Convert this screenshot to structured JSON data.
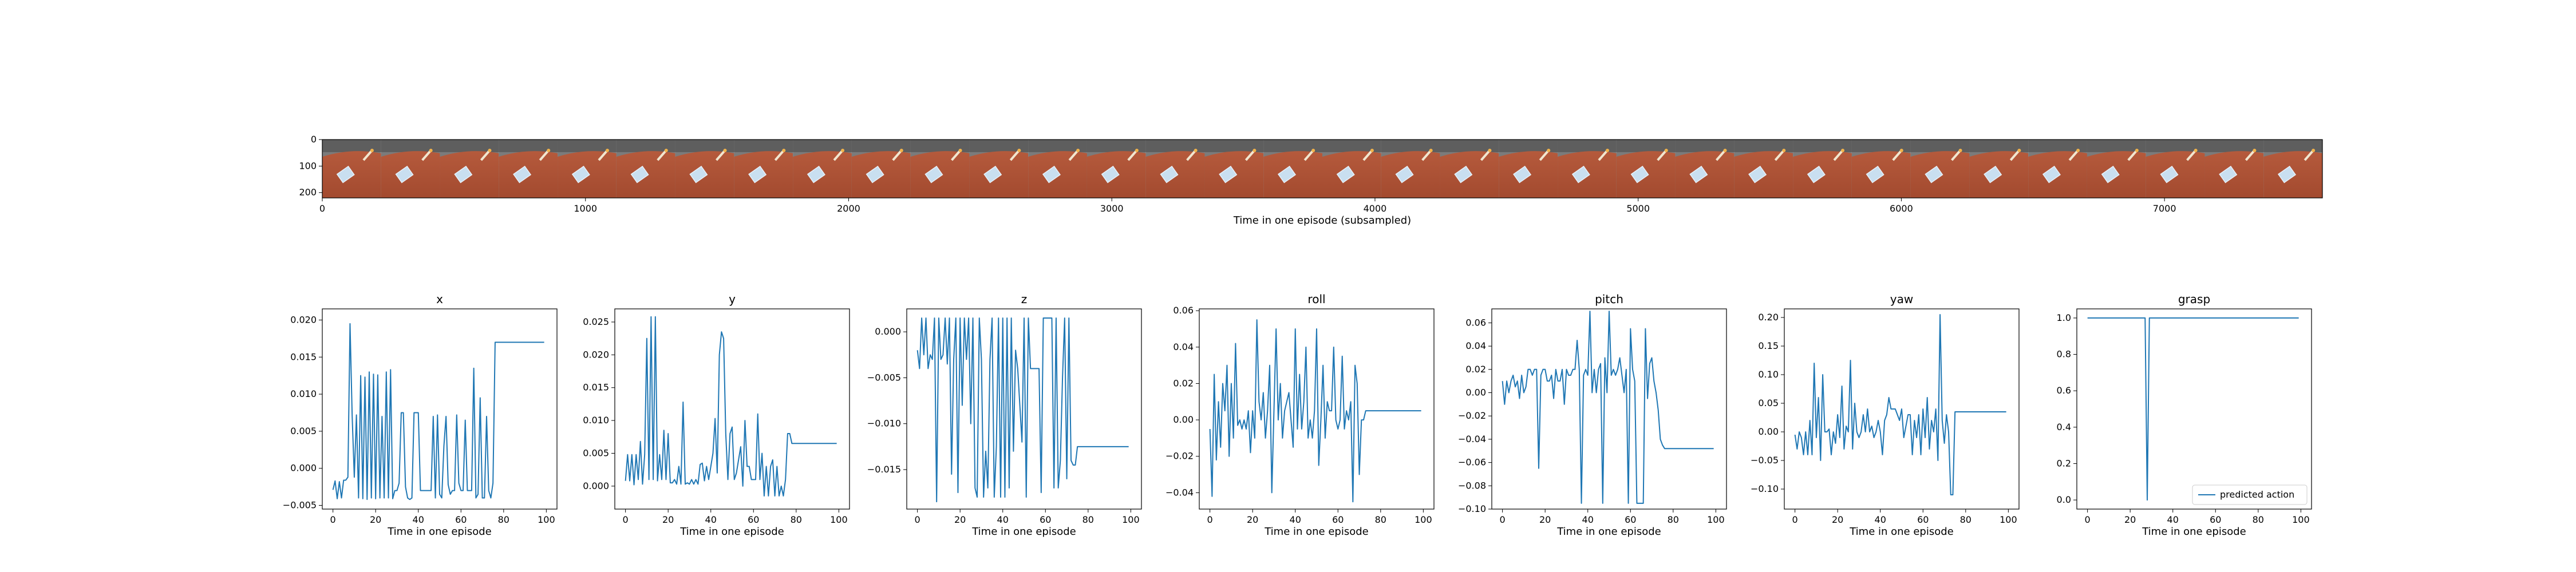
{
  "chart_data": [
    {
      "type": "image-strip",
      "title": "",
      "xlabel": "Time in one episode (subsampled)",
      "xticks": [
        0,
        1000,
        2000,
        3000,
        4000,
        5000,
        6000,
        7000
      ],
      "xlim": [
        0,
        7600
      ],
      "yticks": [
        0,
        100,
        200
      ],
      "ylim": [
        0,
        220
      ],
      "frame_count": 34,
      "frame_width_units": 224
    },
    {
      "type": "line",
      "title": "x",
      "xlabel": "Time in one episode",
      "xlim": [
        -5,
        105
      ],
      "ylim": [
        -0.0055,
        0.0215
      ],
      "xticks": [
        0,
        20,
        40,
        60,
        80,
        100
      ],
      "yticks": [
        -0.005,
        0.0,
        0.005,
        0.01,
        0.015,
        0.02
      ],
      "ytick_labels": [
        "−0.005",
        "0.000",
        "0.005",
        "0.010",
        "0.015",
        "0.020"
      ],
      "series": [
        {
          "name": "predicted action",
          "color": "#1f77b4",
          "values": [
            -0.0029,
            -0.0017,
            -0.0041,
            -0.0018,
            -0.004,
            -0.0016,
            -0.0016,
            -0.0012,
            0.0195,
            0.0071,
            -0.0012,
            0.0072,
            -0.004,
            0.0125,
            -0.0041,
            0.0123,
            -0.0042,
            0.013,
            -0.004,
            0.0127,
            -0.0041,
            0.0126,
            -0.004,
            0.007,
            -0.004,
            0.013,
            -0.004,
            0.0133,
            -0.0041,
            -0.003,
            -0.003,
            -0.002,
            0.0075,
            0.0075,
            -0.0025,
            -0.004,
            -0.0042,
            -0.004,
            0.0075,
            0.0075,
            0.0075,
            -0.003,
            -0.003,
            -0.003,
            -0.003,
            -0.003,
            -0.003,
            0.007,
            -0.004,
            0.0072,
            -0.0035,
            -0.004,
            0.003,
            0.007,
            -0.0022,
            -0.0035,
            -0.003,
            -0.003,
            0.0072,
            -0.002,
            -0.003,
            -0.003,
            0.0065,
            -0.003,
            -0.003,
            -0.003,
            0.0135,
            -0.004,
            -0.0035,
            0.0095,
            -0.004,
            -0.004,
            0.007,
            -0.003,
            -0.004,
            -0.002,
            0.017,
            0.017,
            0.017,
            0.017,
            0.017,
            0.017,
            0.017,
            0.017,
            0.017,
            0.017,
            0.017,
            0.017,
            0.017,
            0.017,
            0.017,
            0.017,
            0.017,
            0.017,
            0.017,
            0.017,
            0.017,
            0.017,
            0.017,
            0.017
          ]
        }
      ]
    },
    {
      "type": "line",
      "title": "y",
      "xlabel": "Time in one episode",
      "xlim": [
        -5,
        105
      ],
      "ylim": [
        -0.0035,
        0.027
      ],
      "xticks": [
        0,
        20,
        40,
        60,
        80,
        100
      ],
      "yticks": [
        0.0,
        0.005,
        0.01,
        0.015,
        0.02,
        0.025
      ],
      "ytick_labels": [
        "0.000",
        "0.005",
        "0.010",
        "0.015",
        "0.020",
        "0.025"
      ],
      "series": [
        {
          "name": "predicted action",
          "color": "#1f77b4",
          "values": [
            0.0008,
            0.0048,
            0.0008,
            0.0048,
            0.0002,
            0.0048,
            0.001,
            0.0068,
            0.0003,
            0.0048,
            0.0225,
            0.001,
            0.0258,
            0.001,
            0.0258,
            0.0008,
            0.0048,
            0.001,
            0.0085,
            0.001,
            0.008,
            0.0005,
            0.0005,
            0.001,
            0.0003,
            0.003,
            0.0003,
            0.0128,
            0.0003,
            0.0005,
            0.0003,
            0.001,
            0.0003,
            0.001,
            0.0003,
            0.0033,
            0.0035,
            0.0008,
            0.003,
            0.001,
            0.003,
            0.005,
            0.0103,
            0.002,
            0.02,
            0.0235,
            0.0225,
            0.008,
            0.001,
            0.008,
            0.009,
            0.001,
            0.002,
            0.004,
            0.006,
            0.0,
            0.01,
            0.003,
            0.003,
            0.001,
            0.001,
            0.001,
            0.011,
            0.001,
            0.005,
            -0.0015,
            0.003,
            -0.0015,
            0.003,
            0.004,
            -0.0015,
            0.003,
            -0.0015,
            0.0,
            -0.0015,
            0.001,
            0.008,
            0.008,
            0.0065,
            0.0065,
            0.0065,
            0.0065,
            0.0065,
            0.0065,
            0.0065,
            0.0065,
            0.0065,
            0.0065,
            0.0065,
            0.0065,
            0.0065,
            0.0065,
            0.0065,
            0.0065,
            0.0065,
            0.0065,
            0.0065,
            0.0065,
            0.0065,
            0.0065
          ]
        }
      ]
    },
    {
      "type": "line",
      "title": "z",
      "xlabel": "Time in one episode",
      "xlim": [
        -5,
        105
      ],
      "ylim": [
        -0.0193,
        0.0025
      ],
      "xticks": [
        0,
        20,
        40,
        60,
        80,
        100
      ],
      "yticks": [
        0.0,
        -0.005,
        -0.01,
        -0.015
      ],
      "ytick_labels": [
        "0.000",
        "−0.005",
        "−0.010",
        "−0.015"
      ],
      "series": [
        {
          "name": "predicted action",
          "color": "#1f77b4",
          "values": [
            -0.002,
            -0.004,
            0.0015,
            -0.0025,
            0.0015,
            -0.004,
            -0.0025,
            -0.003,
            0.0015,
            -0.0185,
            0.0015,
            -0.003,
            -0.0025,
            0.0015,
            -0.0035,
            0.0015,
            -0.0155,
            -0.003,
            0.0015,
            -0.0175,
            0.0015,
            -0.008,
            0.0015,
            -0.003,
            0.0015,
            -0.01,
            0.0015,
            -0.017,
            -0.018,
            0.0015,
            -0.003,
            -0.018,
            -0.013,
            -0.017,
            -0.003,
            0.0015,
            -0.018,
            -0.0125,
            0.0015,
            -0.018,
            0.0015,
            -0.018,
            0.0015,
            -0.017,
            0.0015,
            -0.013,
            -0.002,
            -0.004,
            -0.008,
            -0.012,
            0.0015,
            -0.018,
            0.0015,
            -0.004,
            -0.004,
            -0.004,
            -0.004,
            -0.004,
            -0.0175,
            0.0015,
            0.0015,
            0.0015,
            0.0015,
            0.0015,
            -0.017,
            0.0015,
            -0.017,
            -0.014,
            -0.005,
            0.0015,
            -0.016,
            0.0015,
            -0.014,
            -0.0145,
            -0.0145,
            -0.0125,
            -0.0125,
            -0.0125,
            -0.0125,
            -0.0125,
            -0.0125,
            -0.0125,
            -0.0125,
            -0.0125,
            -0.0125,
            -0.0125,
            -0.0125,
            -0.0125,
            -0.0125,
            -0.0125,
            -0.0125,
            -0.0125,
            -0.0125,
            -0.0125,
            -0.0125,
            -0.0125,
            -0.0125,
            -0.0125,
            -0.0125,
            -0.0125
          ]
        }
      ]
    },
    {
      "type": "line",
      "title": "roll",
      "xlabel": "Time in one episode",
      "xlim": [
        -5,
        105
      ],
      "ylim": [
        -0.049,
        0.061
      ],
      "xticks": [
        0,
        20,
        40,
        60,
        80,
        100
      ],
      "yticks": [
        -0.04,
        -0.02,
        0.0,
        0.02,
        0.04,
        0.06
      ],
      "ytick_labels": [
        "−0.04",
        "−0.02",
        "0.00",
        "0.02",
        "0.04",
        "0.06"
      ],
      "series": [
        {
          "name": "predicted action",
          "color": "#1f77b4",
          "values": [
            -0.005,
            -0.042,
            0.025,
            -0.022,
            0.01,
            -0.015,
            0.02,
            0.005,
            0.03,
            -0.02,
            0.02,
            -0.01,
            0.042,
            -0.003,
            0.0,
            -0.005,
            0.0,
            -0.005,
            0.005,
            -0.018,
            0.005,
            -0.01,
            0.055,
            0.01,
            0.0,
            0.015,
            -0.01,
            0.005,
            0.03,
            -0.04,
            0.005,
            0.05,
            0.0,
            0.02,
            -0.01,
            0.005,
            0.01,
            0.015,
            0.0,
            -0.015,
            0.05,
            -0.005,
            0.025,
            -0.005,
            0.01,
            0.04,
            -0.01,
            0.0,
            -0.01,
            0.005,
            0.05,
            -0.025,
            0.0,
            0.03,
            -0.01,
            0.01,
            0.005,
            0.005,
            0.04,
            0.0,
            -0.005,
            0.0,
            0.035,
            -0.005,
            0.005,
            0.0,
            0.01,
            -0.045,
            0.03,
            0.02,
            -0.03,
            0.0,
            0.0,
            0.005,
            0.005,
            0.005,
            0.005,
            0.005,
            0.005,
            0.005,
            0.005,
            0.005,
            0.005,
            0.005,
            0.005,
            0.005,
            0.005,
            0.005,
            0.005,
            0.005,
            0.005,
            0.005,
            0.005,
            0.005,
            0.005,
            0.005,
            0.005,
            0.005,
            0.005,
            0.005
          ]
        }
      ]
    },
    {
      "type": "line",
      "title": "pitch",
      "xlabel": "Time in one episode",
      "xlim": [
        -5,
        105
      ],
      "ylim": [
        -0.1,
        0.072
      ],
      "xticks": [
        0,
        20,
        40,
        60,
        80,
        100
      ],
      "yticks": [
        -0.1,
        -0.08,
        -0.06,
        -0.04,
        -0.02,
        0.0,
        0.02,
        0.04,
        0.06
      ],
      "ytick_labels": [
        "−0.10",
        "−0.08",
        "−0.06",
        "−0.04",
        "−0.02",
        "0.00",
        "0.02",
        "0.04",
        "0.06"
      ],
      "series": [
        {
          "name": "predicted action",
          "color": "#1f77b4",
          "values": [
            0.01,
            -0.01,
            0.01,
            0.0,
            0.01,
            0.015,
            0.005,
            0.01,
            -0.005,
            0.015,
            0.0,
            0.005,
            0.02,
            0.02,
            0.015,
            0.02,
            0.02,
            -0.065,
            0.015,
            0.02,
            0.02,
            0.01,
            0.01,
            0.015,
            -0.005,
            0.02,
            0.01,
            0.01,
            0.02,
            -0.01,
            0.02,
            0.015,
            0.015,
            0.02,
            0.02,
            0.045,
            0.02,
            -0.095,
            0.015,
            0.02,
            0.015,
            0.07,
            0.0,
            0.02,
            0.0,
            0.02,
            0.025,
            -0.095,
            0.03,
            0.0,
            0.07,
            0.015,
            0.02,
            0.015,
            0.02,
            0.03,
            0.015,
            0.0,
            0.02,
            -0.095,
            0.055,
            0.02,
            0.01,
            -0.095,
            -0.095,
            -0.095,
            -0.095,
            0.055,
            -0.005,
            0.025,
            0.03,
            0.01,
            0.0,
            -0.015,
            -0.04,
            -0.045,
            -0.048,
            -0.048,
            -0.048,
            -0.048,
            -0.048,
            -0.048,
            -0.048,
            -0.048,
            -0.048,
            -0.048,
            -0.048,
            -0.048,
            -0.048,
            -0.048,
            -0.048,
            -0.048,
            -0.048,
            -0.048,
            -0.048,
            -0.048,
            -0.048,
            -0.048,
            -0.048,
            -0.048
          ]
        }
      ]
    },
    {
      "type": "line",
      "title": "yaw",
      "xlabel": "Time in one episode",
      "xlim": [
        -5,
        105
      ],
      "ylim": [
        -0.135,
        0.215
      ],
      "xticks": [
        0,
        20,
        40,
        60,
        80,
        100
      ],
      "yticks": [
        -0.1,
        -0.05,
        0.0,
        0.05,
        0.1,
        0.15,
        0.2
      ],
      "ytick_labels": [
        "−0.10",
        "−0.05",
        "0.00",
        "0.05",
        "0.10",
        "0.15",
        "0.20"
      ],
      "series": [
        {
          "name": "predicted action",
          "color": "#1f77b4",
          "values": [
            -0.005,
            -0.03,
            0.0,
            -0.01,
            -0.04,
            0.0,
            -0.04,
            0.02,
            -0.04,
            0.12,
            -0.01,
            0.06,
            -0.05,
            0.1,
            0.0,
            0.0,
            0.005,
            -0.04,
            0.0,
            -0.02,
            0.03,
            -0.01,
            0.08,
            -0.03,
            0.01,
            0.0,
            0.125,
            -0.03,
            0.05,
            0.0,
            -0.01,
            0.0,
            0.03,
            0.0,
            0.04,
            0.0,
            0.01,
            -0.01,
            0.0,
            0.02,
            0.0,
            -0.04,
            0.02,
            0.03,
            0.06,
            0.04,
            0.04,
            0.04,
            0.03,
            0.02,
            0.04,
            -0.01,
            0.01,
            0.03,
            0.03,
            -0.04,
            0.02,
            -0.01,
            0.03,
            -0.04,
            0.04,
            -0.01,
            0.06,
            -0.03,
            0.02,
            0.0,
            0.04,
            -0.05,
            0.205,
            0.02,
            -0.02,
            0.03,
            0.0,
            -0.11,
            -0.11,
            0.035,
            0.035,
            0.035,
            0.035,
            0.035,
            0.035,
            0.035,
            0.035,
            0.035,
            0.035,
            0.035,
            0.035,
            0.035,
            0.035,
            0.035,
            0.035,
            0.035,
            0.035,
            0.035,
            0.035,
            0.035,
            0.035,
            0.035,
            0.035,
            0.035
          ]
        }
      ]
    },
    {
      "type": "line",
      "title": "grasp",
      "xlabel": "Time in one episode",
      "xlim": [
        -5,
        105
      ],
      "ylim": [
        -0.05,
        1.05
      ],
      "xticks": [
        0,
        20,
        40,
        60,
        80,
        100
      ],
      "yticks": [
        0.0,
        0.2,
        0.4,
        0.6,
        0.8,
        1.0
      ],
      "ytick_labels": [
        "0.0",
        "0.2",
        "0.4",
        "0.6",
        "0.8",
        "1.0"
      ],
      "legend": {
        "position": "lower-right",
        "label": "predicted action"
      },
      "series": [
        {
          "name": "predicted action",
          "color": "#1f77b4",
          "values": [
            1,
            1,
            1,
            1,
            1,
            1,
            1,
            1,
            1,
            1,
            1,
            1,
            1,
            1,
            1,
            1,
            1,
            1,
            1,
            1,
            1,
            1,
            1,
            1,
            1,
            1,
            1,
            1,
            0,
            1,
            1,
            1,
            1,
            1,
            1,
            1,
            1,
            1,
            1,
            1,
            1,
            1,
            1,
            1,
            1,
            1,
            1,
            1,
            1,
            1,
            1,
            1,
            1,
            1,
            1,
            1,
            1,
            1,
            1,
            1,
            1,
            1,
            1,
            1,
            1,
            1,
            1,
            1,
            1,
            1,
            1,
            1,
            1,
            1,
            1,
            1,
            1,
            1,
            1,
            1,
            1,
            1,
            1,
            1,
            1,
            1,
            1,
            1,
            1,
            1,
            1,
            1,
            1,
            1,
            1,
            1,
            1,
            1,
            1,
            1
          ]
        }
      ]
    }
  ]
}
